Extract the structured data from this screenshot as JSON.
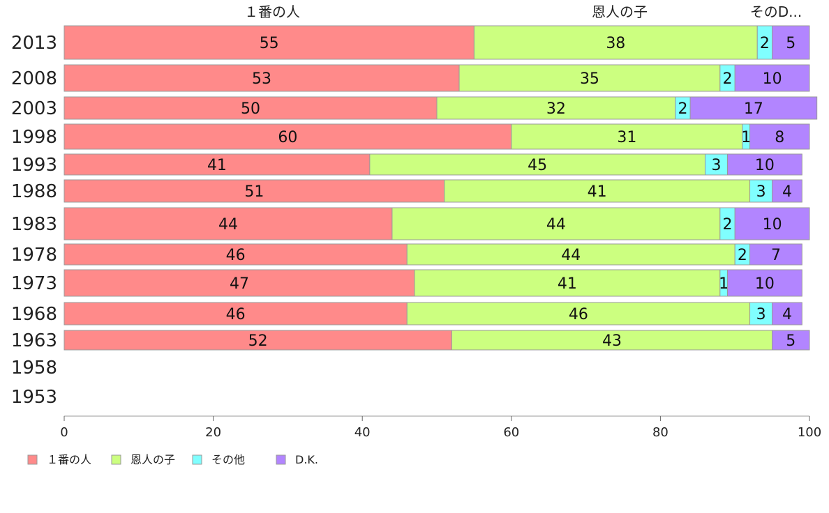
{
  "chart_data": {
    "type": "bar",
    "orientation": "horizontal",
    "stacked": true,
    "top_labels": [
      "１番の人",
      "恩人の子",
      "そのD..."
    ],
    "categories": [
      "2013",
      "2008",
      "2003",
      "1998",
      "1993",
      "1988",
      "1983",
      "1978",
      "1973",
      "1968",
      "1963",
      "1958",
      "1953"
    ],
    "series": [
      {
        "name": "１番の人",
        "color": "#ff8a8a",
        "values": [
          55,
          53,
          50,
          60,
          41,
          51,
          44,
          46,
          47,
          46,
          52,
          null,
          null
        ]
      },
      {
        "name": "恩人の子",
        "color": "#ccff80",
        "values": [
          38,
          35,
          32,
          31,
          45,
          41,
          44,
          44,
          41,
          46,
          43,
          null,
          null
        ]
      },
      {
        "name": "その他",
        "color": "#80ffff",
        "values": [
          2,
          2,
          2,
          1,
          3,
          3,
          2,
          2,
          1,
          3,
          0,
          null,
          null
        ]
      },
      {
        "name": "D.K.",
        "color": "#b285ff",
        "values": [
          5,
          10,
          17,
          8,
          10,
          4,
          10,
          7,
          10,
          4,
          5,
          null,
          null
        ]
      }
    ],
    "xlim": [
      0,
      100
    ],
    "xticks": [
      0,
      20,
      40,
      60,
      80,
      100
    ],
    "legend_position": "bottom-left",
    "grid": false
  }
}
